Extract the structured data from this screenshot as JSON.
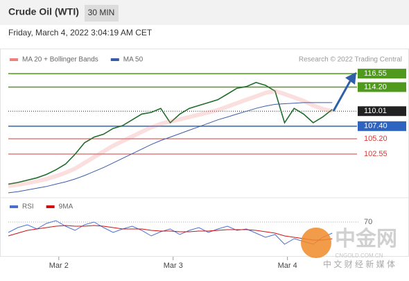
{
  "header": {
    "title": "Crude Oil (WTI)",
    "timeframe": "30 MIN",
    "date": "Friday, March 4, 2022 3:04:19 AM CET"
  },
  "chart_data": [
    {
      "type": "line",
      "credit": "Research © 2022 Trading Central",
      "x": [
        0,
        2,
        4,
        6,
        8,
        10,
        12,
        14,
        16,
        18,
        20,
        22,
        24,
        26,
        28,
        30,
        32,
        34,
        36,
        38,
        40,
        42,
        44,
        46,
        48,
        50,
        52,
        54,
        56,
        58,
        60,
        62,
        64,
        66,
        68
      ],
      "series": [
        {
          "name": "Price",
          "color": "#1f6d2a",
          "values": [
            97.3,
            97.6,
            98.0,
            98.4,
            99.0,
            99.8,
            100.8,
            102.5,
            104.5,
            105.5,
            106.0,
            107.0,
            107.5,
            108.5,
            109.5,
            109.8,
            110.5,
            108.0,
            109.5,
            110.5,
            111.0,
            111.5,
            112.0,
            113.0,
            114.0,
            114.3,
            115.0,
            114.5,
            113.5,
            108.0,
            110.5,
            109.5,
            108.0,
            109.0,
            110.3
          ]
        },
        {
          "name": "MA 20 + Bollinger Bands",
          "color": "#f08080",
          "values": [
            97.0,
            97.2,
            97.5,
            97.8,
            98.2,
            98.7,
            99.3,
            100.0,
            101.0,
            102.0,
            103.0,
            104.0,
            104.8,
            105.6,
            106.4,
            107.2,
            107.8,
            108.2,
            108.6,
            109.0,
            109.4,
            109.8,
            110.2,
            110.8,
            111.4,
            112.0,
            112.6,
            113.2,
            113.5,
            113.0,
            112.4,
            111.8,
            111.0,
            110.4,
            110.0
          ]
        },
        {
          "name": "MA 50",
          "color": "#3a5ba8",
          "values": [
            95.8,
            96.0,
            96.3,
            96.6,
            96.9,
            97.3,
            97.7,
            98.2,
            98.8,
            99.5,
            100.2,
            101.0,
            101.8,
            102.6,
            103.4,
            104.2,
            104.9,
            105.5,
            106.1,
            106.7,
            107.3,
            107.9,
            108.5,
            109.0,
            109.5,
            110.0,
            110.5,
            110.9,
            111.2,
            111.3,
            111.4,
            111.5,
            111.5,
            111.5,
            111.5
          ]
        }
      ],
      "levels": [
        {
          "value": 116.55,
          "label": "116.55",
          "color": "#4f9a1d",
          "box": true
        },
        {
          "value": 114.2,
          "label": "114.20",
          "color": "#4f9a1d",
          "box": true
        },
        {
          "value": 110.01,
          "label": "110.01",
          "color": "#222222",
          "box": true
        },
        {
          "value": 107.4,
          "label": "107.40",
          "color": "#2f63c0",
          "box": true
        },
        {
          "value": 105.2,
          "label": "105.20",
          "color": "#d23a3a",
          "box": false
        },
        {
          "value": 102.55,
          "label": "102.55",
          "color": "#d23a3a",
          "box": false
        }
      ],
      "xlim": [
        0,
        70
      ],
      "ylim": [
        95.3,
        119.7
      ],
      "xticks": [
        {
          "value": 10.6,
          "label": "Mar 2"
        },
        {
          "value": 34.6,
          "label": "Mar 3"
        },
        {
          "value": 58.6,
          "label": "Mar 4"
        }
      ]
    },
    {
      "type": "line",
      "x": [
        0,
        2,
        4,
        6,
        8,
        10,
        12,
        14,
        16,
        18,
        20,
        22,
        24,
        26,
        28,
        30,
        32,
        34,
        36,
        38,
        40,
        42,
        44,
        46,
        48,
        50,
        52,
        54,
        56,
        58,
        60,
        62,
        64,
        66,
        68
      ],
      "series": [
        {
          "name": "RSI",
          "color": "#4a6fd0",
          "values": [
            55,
            62,
            66,
            60,
            68,
            72,
            64,
            58,
            66,
            70,
            62,
            55,
            60,
            64,
            58,
            50,
            56,
            60,
            52,
            58,
            62,
            55,
            60,
            64,
            58,
            60,
            54,
            48,
            52,
            38,
            46,
            42,
            38,
            48,
            54
          ]
        },
        {
          "name": "9MA",
          "color": "#d01010",
          "values": [
            50,
            54,
            58,
            60,
            62,
            64,
            65,
            64,
            64,
            65,
            64,
            62,
            60,
            60,
            60,
            58,
            57,
            57,
            56,
            56,
            57,
            57,
            58,
            59,
            59,
            59,
            58,
            56,
            54,
            50,
            48,
            46,
            44,
            44,
            46
          ]
        }
      ],
      "xlim": [
        0,
        70
      ],
      "ylim": [
        20,
        90
      ],
      "yticks": [
        70
      ]
    }
  ],
  "watermark": {
    "brand": "中金网",
    "site": "CNGOLD.COM.CN",
    "slogan": "中 文 财 经 新 媒 体"
  }
}
